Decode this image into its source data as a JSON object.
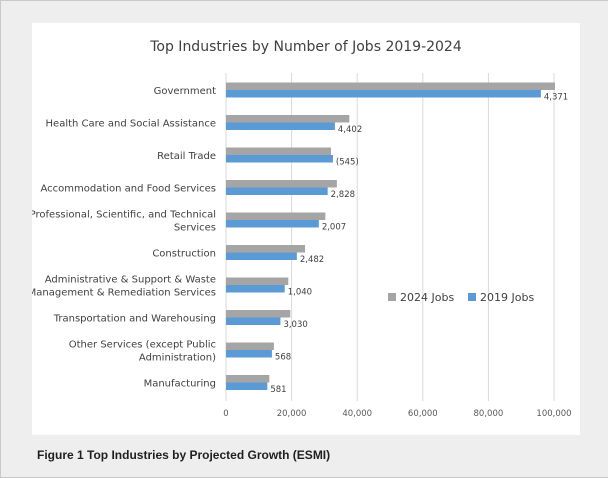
{
  "caption": "Figure 1 Top Industries by Projected Growth (ESMI)",
  "colors": {
    "series_2024": "#a5a5a5",
    "series_2019": "#5b9bd5",
    "grid": "#d9d9d9",
    "text": "#404040"
  },
  "chart_data": {
    "type": "bar",
    "orientation": "horizontal",
    "title": "Top Industries by Number of Jobs 2019-2024",
    "categories": [
      [
        "Government"
      ],
      [
        "Health Care and Social Assistance"
      ],
      [
        "Retail Trade"
      ],
      [
        "Accommodation and Food Services"
      ],
      [
        "Professional, Scientific, and Technical",
        "Services"
      ],
      [
        "Construction"
      ],
      [
        "Administrative & Support & Waste",
        "Management & Remediation Services"
      ],
      [
        "Transportation and Warehousing"
      ],
      [
        "Other Services (except Public",
        "Administration)"
      ],
      [
        "Manufacturing"
      ]
    ],
    "series": [
      {
        "name": "2024 Jobs",
        "color": "#a5a5a5",
        "values": [
          100300,
          37600,
          32000,
          33800,
          30300,
          24100,
          19000,
          19600,
          14600,
          13200
        ]
      },
      {
        "name": "2019 Jobs",
        "color": "#5b9bd5",
        "values": [
          96000,
          33200,
          32600,
          31000,
          28300,
          21600,
          17900,
          16600,
          14000,
          12600
        ]
      }
    ],
    "data_labels": [
      "4,371",
      "4,402",
      "(545)",
      "2,828",
      "2,007",
      "2,482",
      "1,040",
      "3,030",
      "568",
      "581"
    ],
    "xlim": [
      0,
      100000
    ],
    "xticks": [
      0,
      20000,
      40000,
      60000,
      80000,
      100000
    ],
    "xtick_labels": [
      "0",
      "20,000",
      "40,000",
      "60,000",
      "80,000",
      "100,000"
    ],
    "grid": true,
    "legend_position": "right"
  }
}
